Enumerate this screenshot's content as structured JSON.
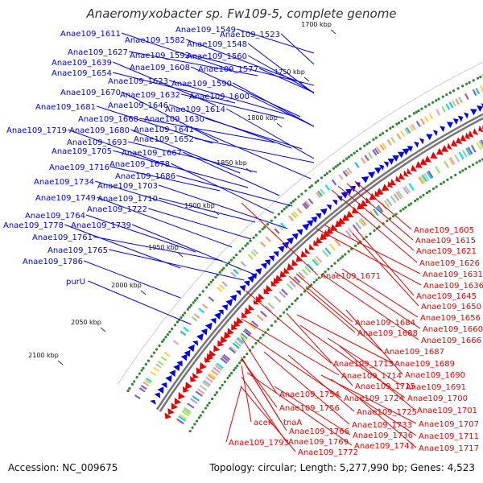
{
  "title": "Anaeromyxobacter sp. Fw109-5, complete genome",
  "footer": {
    "accession": "Accession: NC_009675",
    "summary": "Topology: circular; Length: 5,277,990 bp; Genes: 4,523"
  },
  "scale_labels": [
    "1700 kbp",
    "1750 kbp",
    "1800 kbp",
    "1850 kbp",
    "1900 kbp",
    "1950 kbp",
    "2000 kbp",
    "2050 kbp",
    "2100 kbp"
  ],
  "colors": {
    "plus_strand": "#0000ee",
    "minus_strand": "#ee0000",
    "backbone": "#777777",
    "gc_dots": "#2a8a2a"
  },
  "forward_labels": [
    "Anae109_1549",
    "Anae109_1523",
    "Anae109_1611",
    "Anae109_1582",
    "Anae109_1548",
    "Anae109_1627",
    "Anae109_1592",
    "Anae109_1560",
    "Anae109_1639",
    "Anae109_1608",
    "Anae109_1577",
    "Anae109_1654",
    "Anae109_1623",
    "Anae109_1590",
    "Anae109_1670",
    "Anae109_1632",
    "Anae109_1600",
    "Anae109_1681",
    "Anae109_1646",
    "Anae109_1614",
    "Anae109_1668",
    "Anae109_1630",
    "Anae109_1719",
    "Anae109_1680",
    "Anae109_1641",
    "Anae109_1652",
    "Anae109_1693",
    "Anae109_1705",
    "Anae109_1667",
    "Anae109_1678",
    "Anae109_1716",
    "Anae109_1686",
    "Anae109_1734",
    "Anae109_1703",
    "Anae109_1749",
    "Anae109_1710",
    "Anae109_1722",
    "Anae109_1764",
    "Anae109_1778",
    "Anae109_1739",
    "Anae109_1761",
    "Anae109_1765",
    "Anae109_1786",
    "purU"
  ],
  "reverse_labels": [
    "Anae109_1605",
    "Anae109_1615",
    "Anae109_1621",
    "Anae109_1626",
    "Anae109_1631",
    "Anae109_1636",
    "Anae109_1645",
    "Anae109_1650",
    "Anae109_1656",
    "Anae109_1660",
    "Anae109_1666",
    "Anae109_1671",
    "Anae109_1684",
    "Anae109_1688",
    "Anae109_1687",
    "Anae109_1713",
    "Anae109_1689",
    "Anae109_1714",
    "Anae109_1690",
    "Anae109_1715",
    "Anae109_1691",
    "Anae109_1754",
    "Anae109_1724",
    "Anae109_1700",
    "Anae109_1756",
    "Anae109_1725",
    "Anae109_1701",
    "Anae109_1733",
    "Anae109_1707",
    "aceK",
    "tnaA",
    "Anae109_1766",
    "Anae109_1736",
    "Anae109_1711",
    "Anae109_1769",
    "Anae109_1741",
    "Anae109_1717",
    "Anae109_1793",
    "Anae109_1772"
  ]
}
